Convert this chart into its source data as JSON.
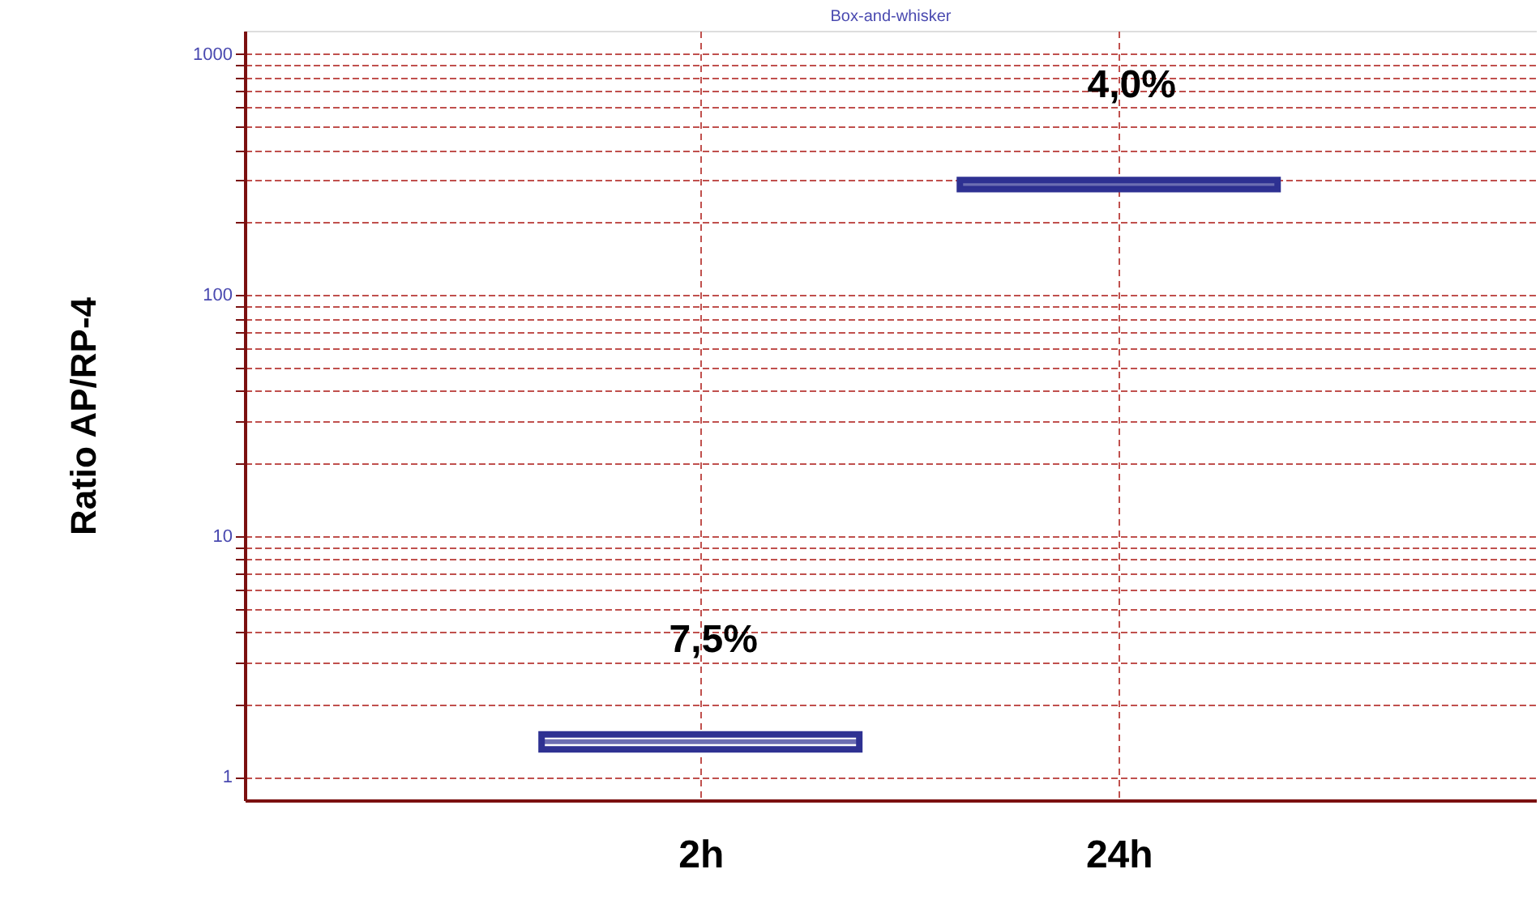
{
  "chart_data": {
    "type": "box",
    "title": "Box-and-whisker",
    "ylabel": "Ratio AP/RP-4",
    "categories": [
      "2h",
      "24h"
    ],
    "boxes": [
      {
        "low": 1.3,
        "q1": 1.3,
        "median": 1.4,
        "q3": 1.5,
        "high": 1.5
      },
      {
        "low": 270,
        "q1": 275,
        "median": 285,
        "q3": 300,
        "high": 305
      }
    ],
    "color": "#2e3192",
    "log": true,
    "ylim": [
      0.8,
      1250
    ],
    "yticks": [
      1,
      {
        "value": 2,
        "label": null
      },
      {
        "value": 3,
        "label": null
      },
      {
        "value": 4,
        "label": null
      },
      {
        "value": 5,
        "label": null
      },
      {
        "value": 6,
        "label": null
      },
      {
        "value": 7,
        "label": null
      },
      {
        "value": 8,
        "label": null
      },
      {
        "value": 9,
        "label": null
      },
      10,
      {
        "value": 20,
        "label": null
      },
      {
        "value": 30,
        "label": null
      },
      {
        "value": 40,
        "label": null
      },
      {
        "value": 50,
        "label": null
      },
      {
        "value": 60,
        "label": null
      },
      {
        "value": 70,
        "label": null
      },
      {
        "value": 80,
        "label": null
      },
      {
        "value": 90,
        "label": null
      },
      100,
      {
        "value": 200,
        "label": null
      },
      {
        "value": 300,
        "label": null
      },
      {
        "value": 400,
        "label": null
      },
      {
        "value": 500,
        "label": null
      },
      {
        "value": 600,
        "label": null
      },
      {
        "value": 700,
        "label": null
      },
      {
        "value": 800,
        "label": null
      },
      {
        "value": 900,
        "label": null
      },
      1000
    ],
    "grid": true,
    "annotations": [
      "7,5%",
      "4,0%"
    ]
  }
}
